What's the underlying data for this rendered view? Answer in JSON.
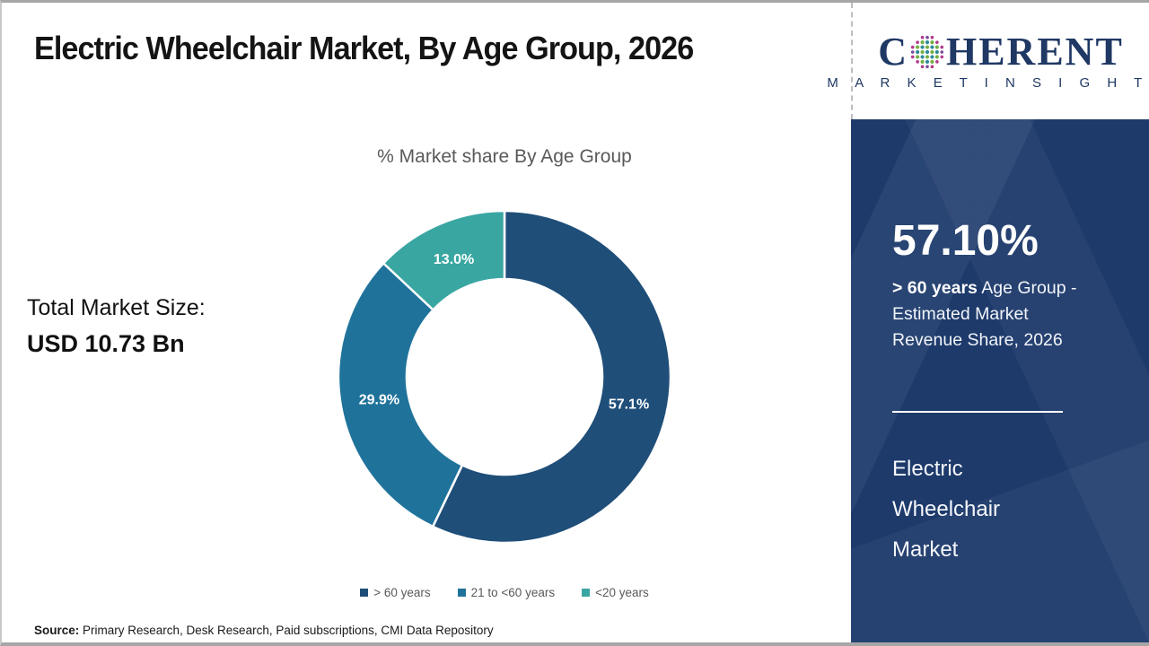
{
  "header": {
    "title": "Electric Wheelchair Market, By Age Group, 2026"
  },
  "logo": {
    "brand_first_letter": "C",
    "brand_rest": "HERENT",
    "brand_subtitle": "M A R K E T   I N S I G H T S",
    "globe_icon": "dotted-globe-icon",
    "brand_color": "#1f3864",
    "globe_dot_colors": {
      "teal": "#2d8a97",
      "green": "#76b043",
      "magenta": "#b23a8b",
      "purple": "#7c4ba0"
    }
  },
  "left_panel": {
    "total_label": "Total Market Size:",
    "total_value": "USD 10.73 Bn"
  },
  "chart_data": {
    "type": "pie",
    "donut": true,
    "title": "% Market share By Age Group",
    "categories": [
      "> 60 years",
      "21 to <60 years",
      "<20 years"
    ],
    "values": [
      57.1,
      29.9,
      13.0
    ],
    "data_labels": [
      "57.1%",
      "29.9%",
      "13.0%"
    ],
    "colors": [
      "#1F4E79",
      "#1F739B",
      "#3AA6A2"
    ],
    "start_angle_deg": 0,
    "direction": "clockwise",
    "legend_position": "bottom",
    "outer_radius": 185,
    "inner_radius": 109
  },
  "sidebar": {
    "stat_value": "57.10%",
    "stat_bold": "> 60 years",
    "stat_desc": " Age Group - Estimated Market Revenue Share, 2026",
    "market_name": "Electric Wheelchair Market",
    "background_color": "#1d3a6b"
  },
  "footer": {
    "source_label": "Source:",
    "source_text": " Primary Research, Desk Research, Paid subscriptions, CMI Data Repository"
  }
}
